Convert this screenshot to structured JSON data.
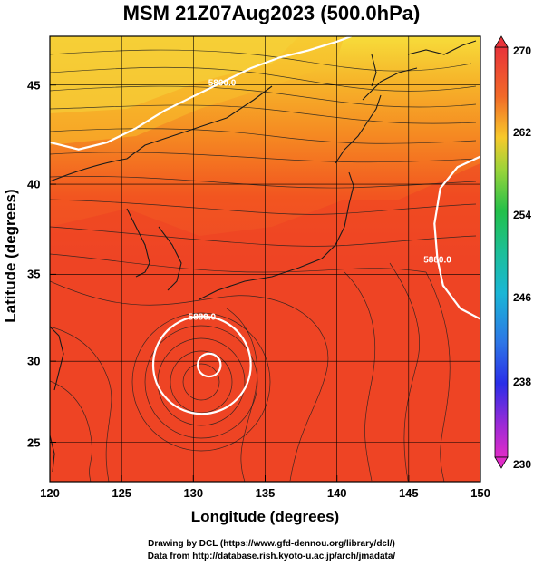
{
  "title": "MSM 21Z07Aug2023 (500.0hPa)",
  "xlabel": "Longitude (degrees)",
  "ylabel": "Latitude (degrees)",
  "credit": {
    "line1": "Drawing by DCL (https://www.gfd-dennou.org/library/dcl/)",
    "line2": "Data from http://database.rish.kyoto-u.ac.jp/arch/jmadata/"
  },
  "x_ticks": [
    "120",
    "125",
    "130",
    "135",
    "140",
    "145",
    "150"
  ],
  "y_ticks": [
    "25",
    "30",
    "35",
    "40",
    "45"
  ],
  "colorbar": {
    "ticks": [
      "270",
      "262",
      "254",
      "246",
      "238",
      "230"
    ],
    "min": 230,
    "max": 270
  },
  "contour_labels": [
    "5800.0",
    "5880.0",
    "5880.0"
  ],
  "chart_data": {
    "type": "heatmap",
    "xlim": [
      120,
      150
    ],
    "ylim": [
      22.4,
      47.6
    ],
    "field": "temperature (shaded) with wind streamlines and height contours",
    "contours": [
      {
        "label": "5800.0",
        "path_lonlat": [
          [
            120,
            41.6
          ],
          [
            122,
            41.2
          ],
          [
            124,
            41.6
          ],
          [
            126,
            42.4
          ],
          [
            128,
            43.4
          ],
          [
            130,
            44.2
          ],
          [
            132,
            45.0
          ],
          [
            134,
            45.8
          ],
          [
            136,
            46.4
          ],
          [
            138,
            46.8
          ],
          [
            140,
            47.3
          ],
          [
            141,
            47.6
          ]
        ]
      },
      {
        "label": "5880.0",
        "path_lonlat": [
          [
            150,
            40.8
          ],
          [
            148.4,
            40.2
          ],
          [
            147.2,
            39.0
          ],
          [
            146.8,
            37.0
          ],
          [
            147.0,
            35.0
          ],
          [
            147.4,
            33.5
          ],
          [
            148.6,
            32.2
          ],
          [
            150,
            31.6
          ]
        ]
      },
      {
        "label": "5880.0",
        "center_lonlat": [
          130.6,
          29.0
        ],
        "radius_deg": 3.4
      },
      {
        "label": "",
        "center_lonlat": [
          131.1,
          29.0
        ],
        "radius_deg": 0.8
      }
    ]
  }
}
